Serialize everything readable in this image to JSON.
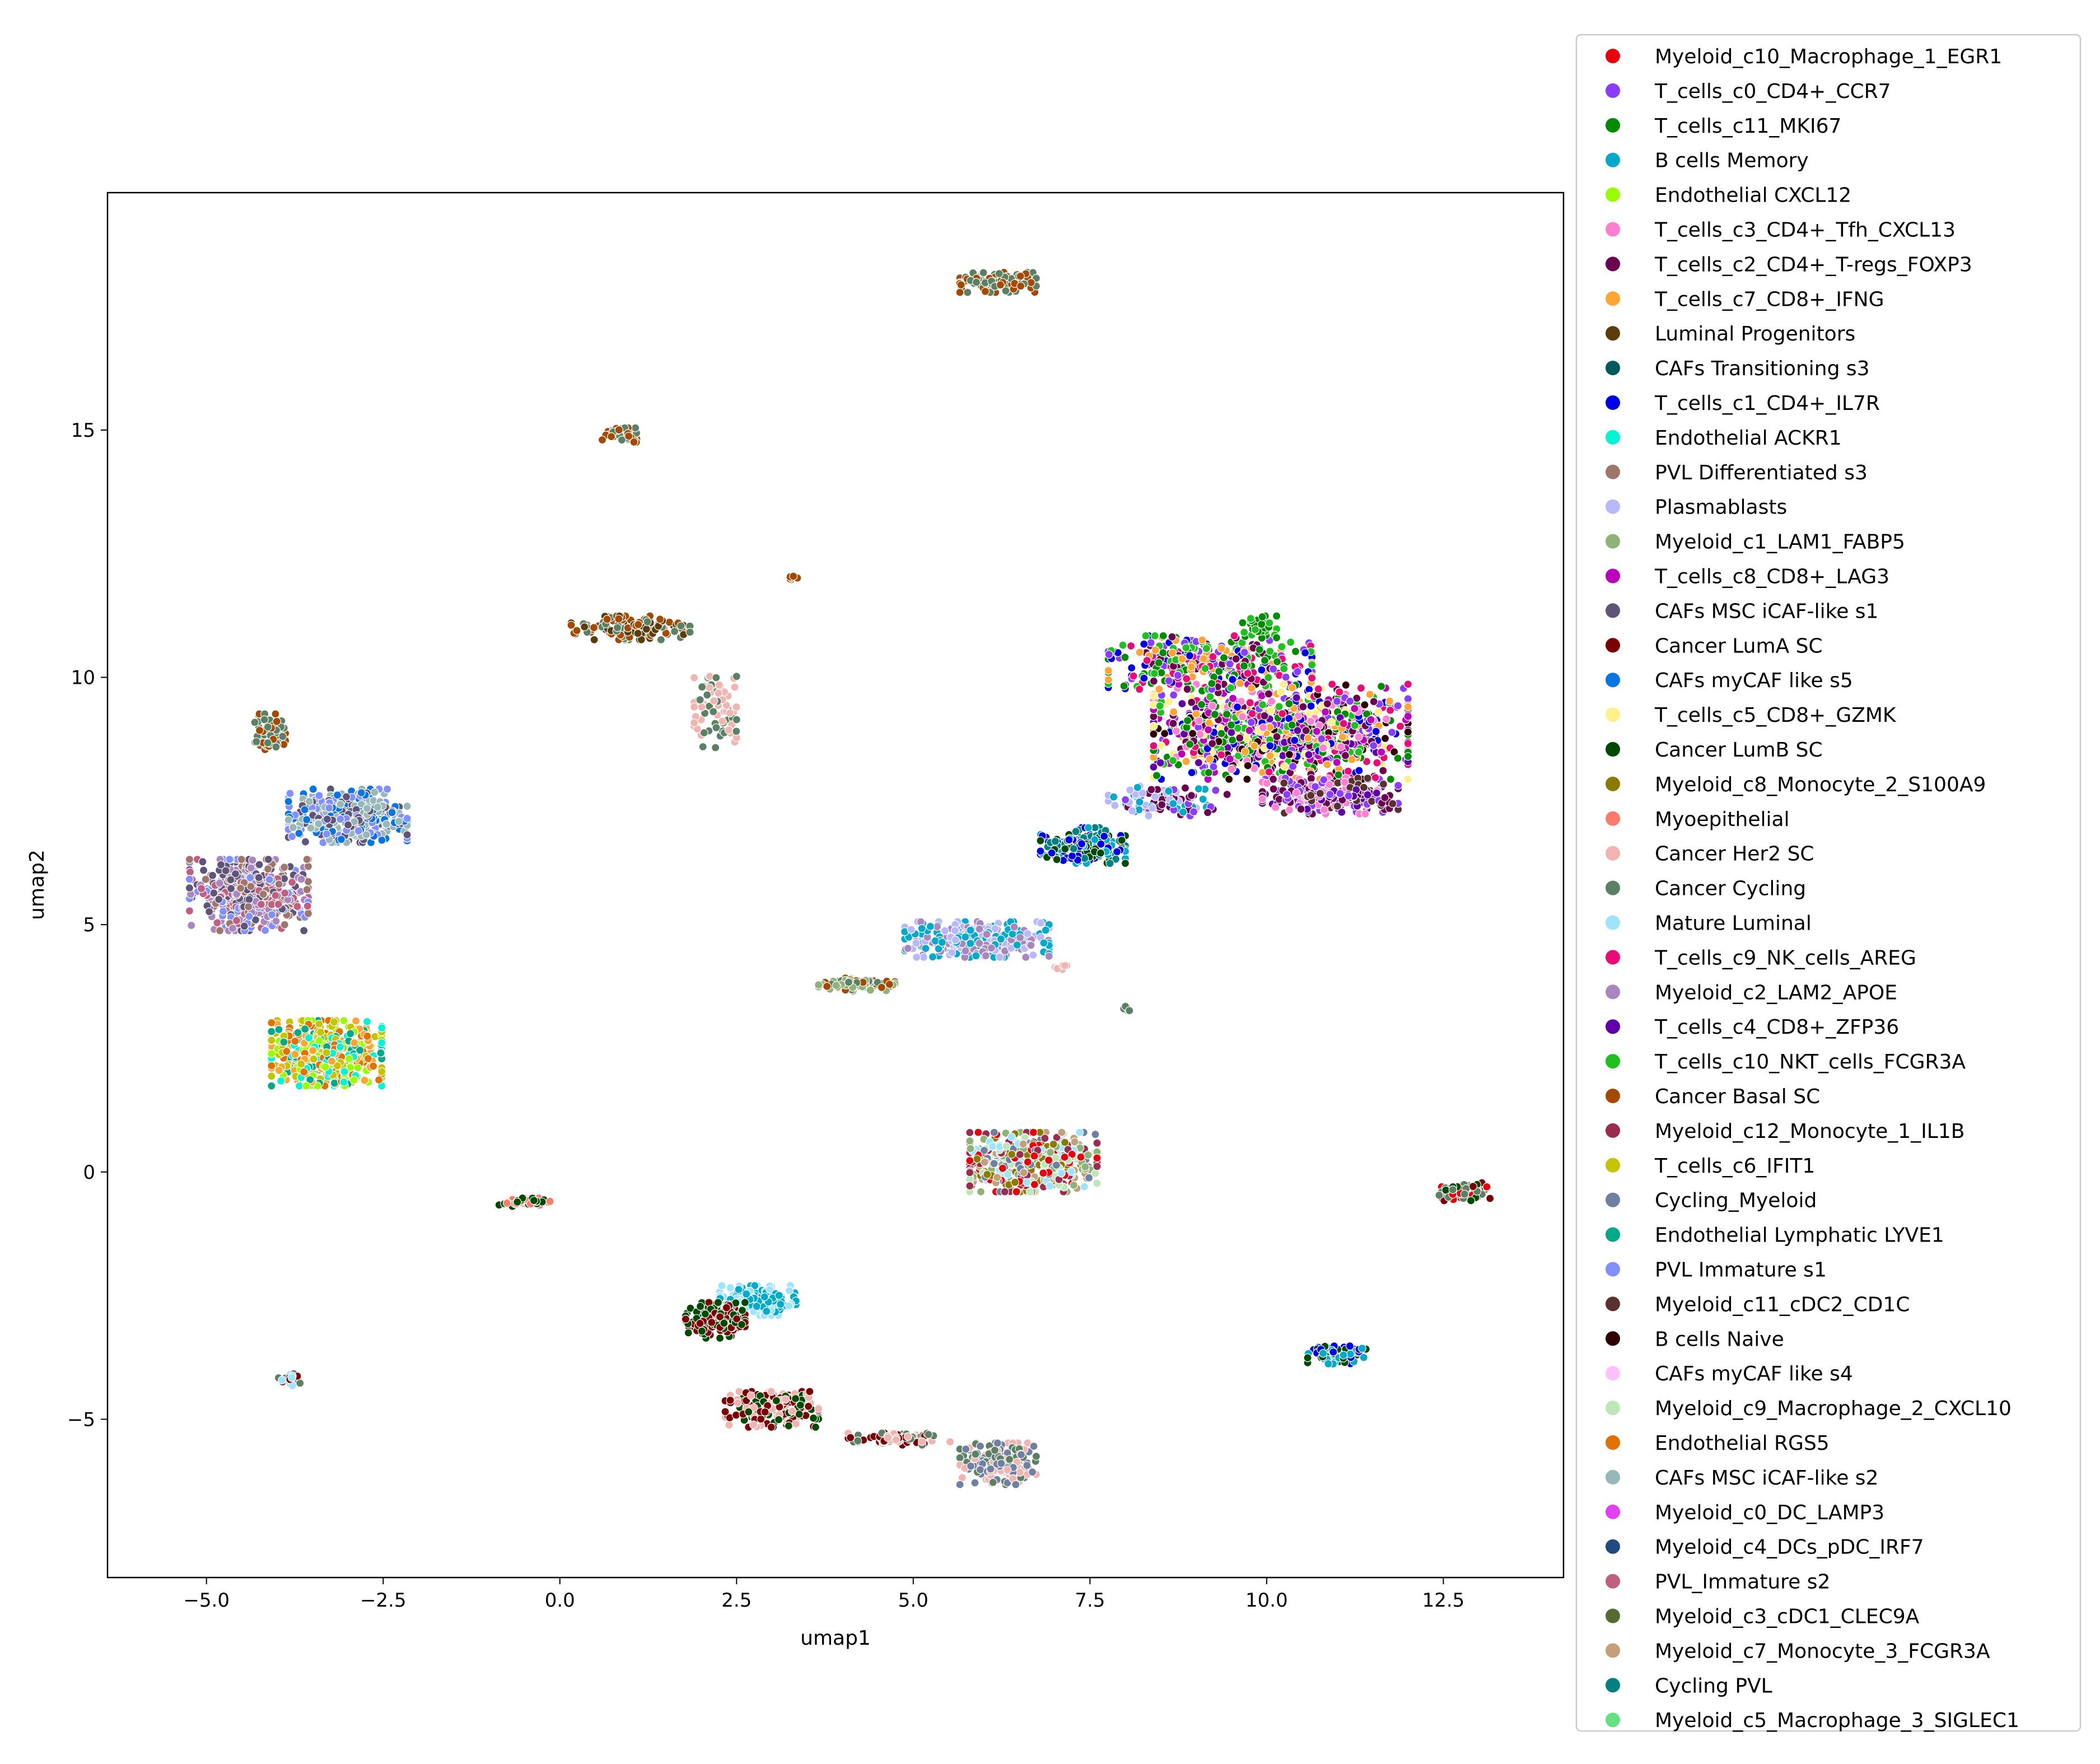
{
  "chart_data": {
    "type": "scatter",
    "title": "",
    "xlabel": "umap1",
    "ylabel": "umap2",
    "xlim": [
      -6.4,
      14.2
    ],
    "ylim": [
      -8.2,
      19.8
    ],
    "xticks": [
      -5.0,
      -2.5,
      0.0,
      2.5,
      5.0,
      7.5,
      10.0,
      12.5
    ],
    "xtick_labels": [
      "−5.0",
      "−2.5",
      "0.0",
      "2.5",
      "5.0",
      "7.5",
      "10.0",
      "12.5"
    ],
    "yticks": [
      -5,
      0,
      5,
      10,
      15
    ],
    "ytick_labels": [
      "−5",
      "0",
      "5",
      "10",
      "15"
    ],
    "grid": false,
    "legend_position": "outside right",
    "series": [
      {
        "name": "Myeloid_c10_Macrophage_1_EGR1",
        "color": "#e8000b"
      },
      {
        "name": "T_cells_c0_CD4+_CCR7",
        "color": "#8b3dff"
      },
      {
        "name": "T_cells_c11_MKI67",
        "color": "#008b00"
      },
      {
        "name": "B cells Memory",
        "color": "#00aac8"
      },
      {
        "name": "Endothelial CXCL12",
        "color": "#99ff00"
      },
      {
        "name": "T_cells_c3_CD4+_Tfh_CXCL13",
        "color": "#ff80d0"
      },
      {
        "name": "T_cells_c2_CD4+_T-regs_FOXP3",
        "color": "#6a004f"
      },
      {
        "name": "T_cells_c7_CD8+_IFNG",
        "color": "#ffa533"
      },
      {
        "name": "Luminal Progenitors",
        "color": "#5a3d0a"
      },
      {
        "name": "CAFs Transitioning s3",
        "color": "#005a5a"
      },
      {
        "name": "T_cells_c1_CD4+_IL7R",
        "color": "#0000e6"
      },
      {
        "name": "Endothelial ACKR1",
        "color": "#00f5d4"
      },
      {
        "name": "PVL Differentiated s3",
        "color": "#a0756a"
      },
      {
        "name": "Plasmablasts",
        "color": "#b8b8ff"
      },
      {
        "name": "Myeloid_c1_LAM1_FABP5",
        "color": "#8fb376"
      },
      {
        "name": "T_cells_c8_CD8+_LAG3",
        "color": "#bb00bb"
      },
      {
        "name": "CAFs MSC iCAF-like s1",
        "color": "#5f557a"
      },
      {
        "name": "Cancer LumA SC",
        "color": "#7a0000"
      },
      {
        "name": "CAFs myCAF like s5",
        "color": "#0a75e0"
      },
      {
        "name": "T_cells_c5_CD8+_GZMK",
        "color": "#fff08a"
      },
      {
        "name": "Cancer LumB SC",
        "color": "#004a00"
      },
      {
        "name": "Myeloid_c8_Monocyte_2_S100A9",
        "color": "#8b7a00"
      },
      {
        "name": "Myoepithelial",
        "color": "#ff7b6b"
      },
      {
        "name": "Cancer Her2 SC",
        "color": "#f0b5b0"
      },
      {
        "name": "Cancer Cycling",
        "color": "#5c8064"
      },
      {
        "name": "Mature Luminal",
        "color": "#9fe4ff"
      },
      {
        "name": "T_cells_c9_NK_cells_AREG",
        "color": "#ea0b78"
      },
      {
        "name": "Myeloid_c2_LAM2_APOE",
        "color": "#a886c0"
      },
      {
        "name": "T_cells_c4_CD8+_ZFP36",
        "color": "#6000a8"
      },
      {
        "name": "T_cells_c10_NKT_cells_FCGR3A",
        "color": "#1fc01f"
      },
      {
        "name": "Cancer Basal SC",
        "color": "#a34a00"
      },
      {
        "name": "Myeloid_c12_Monocyte_1_IL1B",
        "color": "#9a2d4f"
      },
      {
        "name": "T_cells_c6_IFIT1",
        "color": "#c4c400"
      },
      {
        "name": "Cycling_Myeloid",
        "color": "#7080a0"
      },
      {
        "name": "Endothelial Lymphatic LYVE1",
        "color": "#00aa88"
      },
      {
        "name": "PVL Immature s1",
        "color": "#8090ff"
      },
      {
        "name": "Myeloid_c11_cDC2_CD1C",
        "color": "#5a3030"
      },
      {
        "name": "B cells Naive",
        "color": "#300000"
      },
      {
        "name": "CAFs myCAF like s4",
        "color": "#ffc0ff"
      },
      {
        "name": "Myeloid_c9_Macrophage_2_CXCL10",
        "color": "#bfe6b8"
      },
      {
        "name": "Endothelial RGS5",
        "color": "#e07300"
      },
      {
        "name": "CAFs MSC iCAF-like s2",
        "color": "#98b8b8"
      },
      {
        "name": "Myeloid_c0_DC_LAMP3",
        "color": "#e040f0"
      },
      {
        "name": "Myeloid_c4_DCs_pDC_IRF7",
        "color": "#204a80"
      },
      {
        "name": "PVL_Immature s2",
        "color": "#c06080"
      },
      {
        "name": "Myeloid_c3_cDC1_CLEC9A",
        "color": "#556b2f"
      },
      {
        "name": "Myeloid_c7_Monocyte_3_FCGR3A",
        "color": "#c4a07a"
      },
      {
        "name": "Cycling PVL",
        "color": "#008080"
      },
      {
        "name": "Myeloid_c5_Macrophage_3_SIGLEC1",
        "color": "#66e080"
      }
    ],
    "clusters": [
      {
        "center": [
          10.2,
          8.9
        ],
        "spread": [
          1.5,
          0.8
        ],
        "n": 1100,
        "series": [
          1,
          10,
          5,
          28,
          26,
          15,
          6,
          2,
          19,
          7,
          37,
          29
        ]
      },
      {
        "center": [
          9.2,
          10.3
        ],
        "spread": [
          1.2,
          0.45
        ],
        "n": 350,
        "series": [
          1,
          10,
          2,
          29,
          7,
          26,
          6
        ]
      },
      {
        "center": [
          9.9,
          11.0
        ],
        "spread": [
          0.2,
          0.2
        ],
        "n": 40,
        "series": [
          2,
          29
        ]
      },
      {
        "center": [
          10.9,
          7.6
        ],
        "spread": [
          0.8,
          0.3
        ],
        "n": 260,
        "series": [
          6,
          28,
          5,
          1,
          36
        ]
      },
      {
        "center": [
          7.4,
          6.6
        ],
        "spread": [
          0.5,
          0.3
        ],
        "n": 180,
        "series": [
          3,
          20,
          47,
          10
        ]
      },
      {
        "center": [
          8.6,
          7.5
        ],
        "spread": [
          0.7,
          0.25
        ],
        "n": 100,
        "series": [
          3,
          13,
          6,
          1
        ]
      },
      {
        "center": [
          5.9,
          4.7
        ],
        "spread": [
          0.85,
          0.3
        ],
        "n": 340,
        "series": [
          13,
          3,
          27
        ]
      },
      {
        "center": [
          4.2,
          3.8
        ],
        "spread": [
          0.45,
          0.12
        ],
        "n": 90,
        "series": [
          30,
          24,
          14
        ]
      },
      {
        "center": [
          -4.4,
          5.6
        ],
        "spread": [
          0.7,
          0.6
        ],
        "n": 520,
        "series": [
          12,
          35,
          44,
          16,
          27
        ]
      },
      {
        "center": [
          -3.0,
          7.2
        ],
        "spread": [
          0.7,
          0.45
        ],
        "n": 420,
        "series": [
          18,
          16,
          35,
          41
        ]
      },
      {
        "center": [
          -4.1,
          8.9
        ],
        "spread": [
          0.18,
          0.3
        ],
        "n": 70,
        "series": [
          30,
          24
        ]
      },
      {
        "center": [
          -3.3,
          2.4
        ],
        "spread": [
          0.65,
          0.55
        ],
        "n": 520,
        "series": [
          11,
          4,
          7,
          40,
          34,
          32
        ]
      },
      {
        "center": [
          6.7,
          0.2
        ],
        "spread": [
          0.75,
          0.5
        ],
        "n": 520,
        "series": [
          0,
          21,
          14,
          39,
          46,
          33,
          31,
          25
        ]
      },
      {
        "center": [
          12.8,
          -0.4
        ],
        "spread": [
          0.3,
          0.15
        ],
        "n": 90,
        "series": [
          17,
          20,
          24,
          0
        ]
      },
      {
        "center": [
          11.0,
          -3.7
        ],
        "spread": [
          0.35,
          0.15
        ],
        "n": 100,
        "series": [
          20,
          10,
          3
        ]
      },
      {
        "center": [
          2.8,
          -2.6
        ],
        "spread": [
          0.45,
          0.25
        ],
        "n": 150,
        "series": [
          25,
          3
        ]
      },
      {
        "center": [
          2.2,
          -3.0
        ],
        "spread": [
          0.35,
          0.3
        ],
        "n": 160,
        "series": [
          17,
          20
        ]
      },
      {
        "center": [
          3.0,
          -4.8
        ],
        "spread": [
          0.55,
          0.3
        ],
        "n": 220,
        "series": [
          17,
          23,
          20
        ]
      },
      {
        "center": [
          6.2,
          -5.9
        ],
        "spread": [
          0.45,
          0.35
        ],
        "n": 200,
        "series": [
          23,
          24,
          33
        ]
      },
      {
        "center": [
          4.8,
          -5.4
        ],
        "spread": [
          0.6,
          0.1
        ],
        "n": 70,
        "series": [
          24,
          23,
          17
        ]
      },
      {
        "center": [
          1.0,
          11.0
        ],
        "spread": [
          0.7,
          0.2
        ],
        "n": 140,
        "series": [
          8,
          30,
          24
        ]
      },
      {
        "center": [
          2.2,
          9.3
        ],
        "spread": [
          0.25,
          0.6
        ],
        "n": 80,
        "series": [
          23,
          24
        ]
      },
      {
        "center": [
          6.2,
          18.0
        ],
        "spread": [
          0.45,
          0.18
        ],
        "n": 110,
        "series": [
          24,
          30
        ]
      },
      {
        "center": [
          0.9,
          14.9
        ],
        "spread": [
          0.25,
          0.12
        ],
        "n": 45,
        "series": [
          24,
          30
        ]
      },
      {
        "center": [
          -0.5,
          -0.6
        ],
        "spread": [
          0.3,
          0.08
        ],
        "n": 60,
        "series": [
          22,
          20
        ]
      },
      {
        "center": [
          -3.8,
          -4.2
        ],
        "spread": [
          0.15,
          0.1
        ],
        "n": 25,
        "series": [
          17,
          24,
          25
        ]
      },
      {
        "center": [
          3.3,
          12.0
        ],
        "spread": [
          0.08,
          0.04
        ],
        "n": 6,
        "series": [
          30
        ]
      },
      {
        "center": [
          7.1,
          4.15
        ],
        "spread": [
          0.1,
          0.06
        ],
        "n": 8,
        "series": [
          23
        ]
      },
      {
        "center": [
          8.0,
          3.3
        ],
        "spread": [
          0.06,
          0.08
        ],
        "n": 5,
        "series": [
          24
        ]
      }
    ]
  }
}
